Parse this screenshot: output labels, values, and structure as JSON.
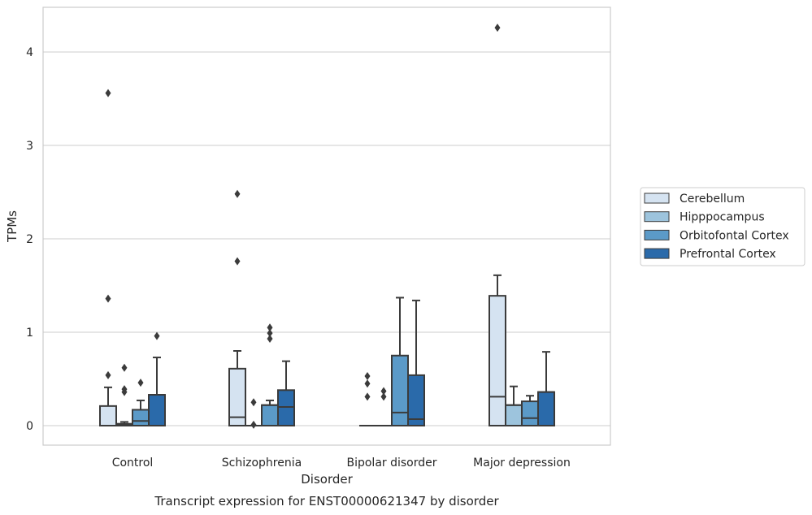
{
  "chart_data": {
    "type": "box",
    "caption": "Transcript expression for ENST00000621347 by disorder",
    "xlabel": "Disorder",
    "ylabel": "TPMs",
    "ylim": [
      -0.2,
      4.5
    ],
    "yticks": [
      0,
      1,
      2,
      3,
      4
    ],
    "grid": true,
    "legend_position": "right",
    "categories": [
      "Control",
      "Schizophrenia",
      "Bipolar disorder",
      "Major depression"
    ],
    "series": [
      {
        "name": "Cerebellum",
        "color": "#d5e3f1",
        "boxes": [
          {
            "q1": 0,
            "median": 0,
            "q3": 0.21,
            "whisker_low": 0,
            "whisker_high": 0.41,
            "outliers": [
              0.54,
              1.36,
              3.56
            ]
          },
          {
            "q1": 0,
            "median": 0.09,
            "q3": 0.61,
            "whisker_low": 0,
            "whisker_high": 0.8,
            "outliers": [
              1.76,
              2.48
            ]
          },
          {
            "q1": 0,
            "median": 0,
            "q3": 0,
            "whisker_low": 0,
            "whisker_high": 0,
            "outliers": [
              0.31,
              0.45,
              0.53
            ]
          },
          {
            "q1": 0,
            "median": 0.31,
            "q3": 1.39,
            "whisker_low": 0,
            "whisker_high": 1.61,
            "outliers": [
              4.26
            ]
          }
        ]
      },
      {
        "name": "Hipppocampus",
        "color": "#9dc4dd",
        "boxes": [
          {
            "q1": 0,
            "median": 0.01,
            "q3": 0.02,
            "whisker_low": 0,
            "whisker_high": 0.04,
            "outliers": [
              0.36,
              0.39,
              0.62
            ]
          },
          {
            "q1": 0,
            "median": 0,
            "q3": 0,
            "whisker_low": 0,
            "whisker_high": 0,
            "outliers": [
              0.01,
              0.25
            ]
          },
          {
            "q1": 0,
            "median": 0,
            "q3": 0,
            "whisker_low": 0,
            "whisker_high": 0,
            "outliers": [
              0.31,
              0.37
            ]
          },
          {
            "q1": 0,
            "median": 0.22,
            "q3": 0.22,
            "whisker_low": 0,
            "whisker_high": 0.42,
            "outliers": []
          }
        ]
      },
      {
        "name": "Orbitofontal Cortex",
        "color": "#5b9ac8",
        "boxes": [
          {
            "q1": 0,
            "median": 0.05,
            "q3": 0.17,
            "whisker_low": 0,
            "whisker_high": 0.27,
            "outliers": [
              0.46
            ]
          },
          {
            "q1": 0,
            "median": 0.22,
            "q3": 0.22,
            "whisker_low": 0,
            "whisker_high": 0.27,
            "outliers": [
              0.93,
              0.99,
              1.05
            ]
          },
          {
            "q1": 0,
            "median": 0.14,
            "q3": 0.75,
            "whisker_low": 0,
            "whisker_high": 1.37,
            "outliers": []
          },
          {
            "q1": 0,
            "median": 0.08,
            "q3": 0.26,
            "whisker_low": 0,
            "whisker_high": 0.32,
            "outliers": []
          }
        ]
      },
      {
        "name": "Prefrontal Cortex",
        "color": "#2a6aaa",
        "boxes": [
          {
            "q1": 0,
            "median": 0.33,
            "q3": 0.33,
            "whisker_low": 0,
            "whisker_high": 0.73,
            "outliers": [
              0.96
            ]
          },
          {
            "q1": 0,
            "median": 0.2,
            "q3": 0.38,
            "whisker_low": 0,
            "whisker_high": 0.69,
            "outliers": []
          },
          {
            "q1": 0,
            "median": 0.07,
            "q3": 0.54,
            "whisker_low": 0,
            "whisker_high": 1.34,
            "outliers": []
          },
          {
            "q1": 0,
            "median": 0.36,
            "q3": 0.36,
            "whisker_low": 0,
            "whisker_high": 0.79,
            "outliers": []
          }
        ]
      }
    ]
  }
}
